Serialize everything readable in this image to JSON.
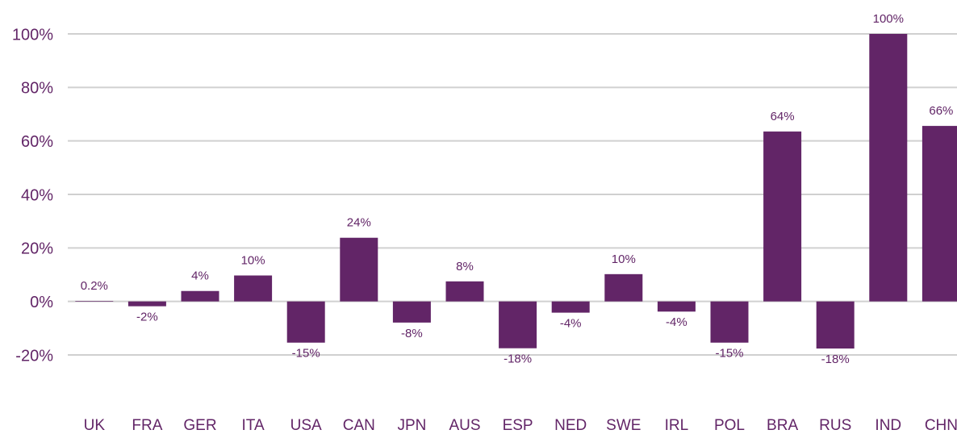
{
  "chart_data": {
    "type": "bar",
    "categories": [
      "UK",
      "FRA",
      "GER",
      "ITA",
      "USA",
      "CAN",
      "JPN",
      "AUS",
      "ESP",
      "NED",
      "SWE",
      "IRL",
      "POL",
      "BRA",
      "RUS",
      "IND",
      "CHN"
    ],
    "values": [
      0.2,
      -1.8,
      3.9,
      9.7,
      -15.4,
      23.8,
      -7.9,
      7.5,
      -17.5,
      -4.2,
      10.2,
      -3.8,
      -15.4,
      63.5,
      -17.6,
      100,
      65.6
    ],
    "value_labels": [
      "0.2%",
      "-2%",
      "4%",
      "10%",
      "-15%",
      "24%",
      "-8%",
      "8%",
      "-18%",
      "-4%",
      "10%",
      "-4%",
      "-15%",
      "64%",
      "-18%",
      "100%",
      "66%"
    ],
    "color": "#622567",
    "ylim": [
      -20,
      100
    ],
    "yticks": [
      {
        "value": -20,
        "label": "-20%"
      },
      {
        "value": 0,
        "label": "0%"
      },
      {
        "value": 20,
        "label": "20%"
      },
      {
        "value": 40,
        "label": "40%"
      },
      {
        "value": 60,
        "label": "60%"
      },
      {
        "value": 80,
        "label": "80%"
      },
      {
        "value": 100,
        "label": "100%"
      }
    ],
    "grid": true
  }
}
